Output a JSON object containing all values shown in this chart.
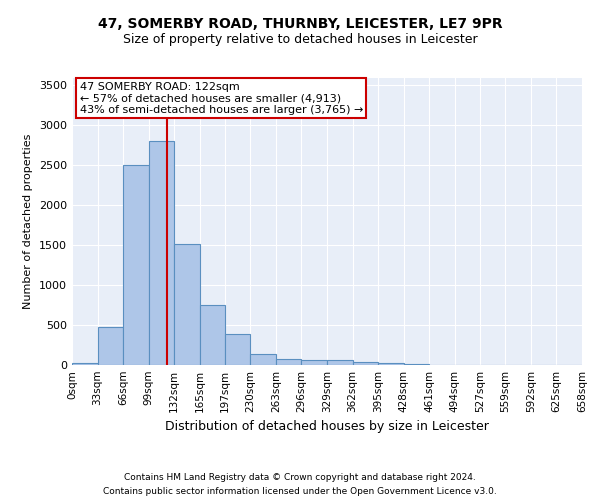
{
  "title1": "47, SOMERBY ROAD, THURNBY, LEICESTER, LE7 9PR",
  "title2": "Size of property relative to detached houses in Leicester",
  "xlabel": "Distribution of detached houses by size in Leicester",
  "ylabel": "Number of detached properties",
  "footnote1": "Contains HM Land Registry data © Crown copyright and database right 2024.",
  "footnote2": "Contains public sector information licensed under the Open Government Licence v3.0.",
  "bin_edges": [
    0,
    33,
    66,
    99,
    132,
    165,
    197,
    230,
    263,
    296,
    329,
    362,
    395,
    428,
    461,
    494,
    527,
    559,
    592,
    625,
    658
  ],
  "bar_heights": [
    20,
    480,
    2500,
    2800,
    1520,
    750,
    390,
    140,
    80,
    60,
    60,
    40,
    25,
    10,
    5,
    3,
    2,
    1,
    1,
    0
  ],
  "bar_color": "#aec6e8",
  "bar_edge_color": "#5a8fc0",
  "background_color": "#e8eef8",
  "red_line_x": 122,
  "annotation_title": "47 SOMERBY ROAD: 122sqm",
  "annotation_line1": "← 57% of detached houses are smaller (4,913)",
  "annotation_line2": "43% of semi-detached houses are larger (3,765) →",
  "annotation_box_color": "#cc0000",
  "ylim": [
    0,
    3600
  ],
  "xlim": [
    0,
    658
  ],
  "tick_labels": [
    "0sqm",
    "33sqm",
    "66sqm",
    "99sqm",
    "132sqm",
    "165sqm",
    "197sqm",
    "230sqm",
    "263sqm",
    "296sqm",
    "329sqm",
    "362sqm",
    "395sqm",
    "428sqm",
    "461sqm",
    "494sqm",
    "527sqm",
    "559sqm",
    "592sqm",
    "625sqm",
    "658sqm"
  ],
  "yticks": [
    0,
    500,
    1000,
    1500,
    2000,
    2500,
    3000,
    3500
  ],
  "title1_fontsize": 10,
  "title2_fontsize": 9,
  "ylabel_fontsize": 8,
  "xlabel_fontsize": 9,
  "footnote_fontsize": 6.5,
  "annotation_fontsize": 8
}
